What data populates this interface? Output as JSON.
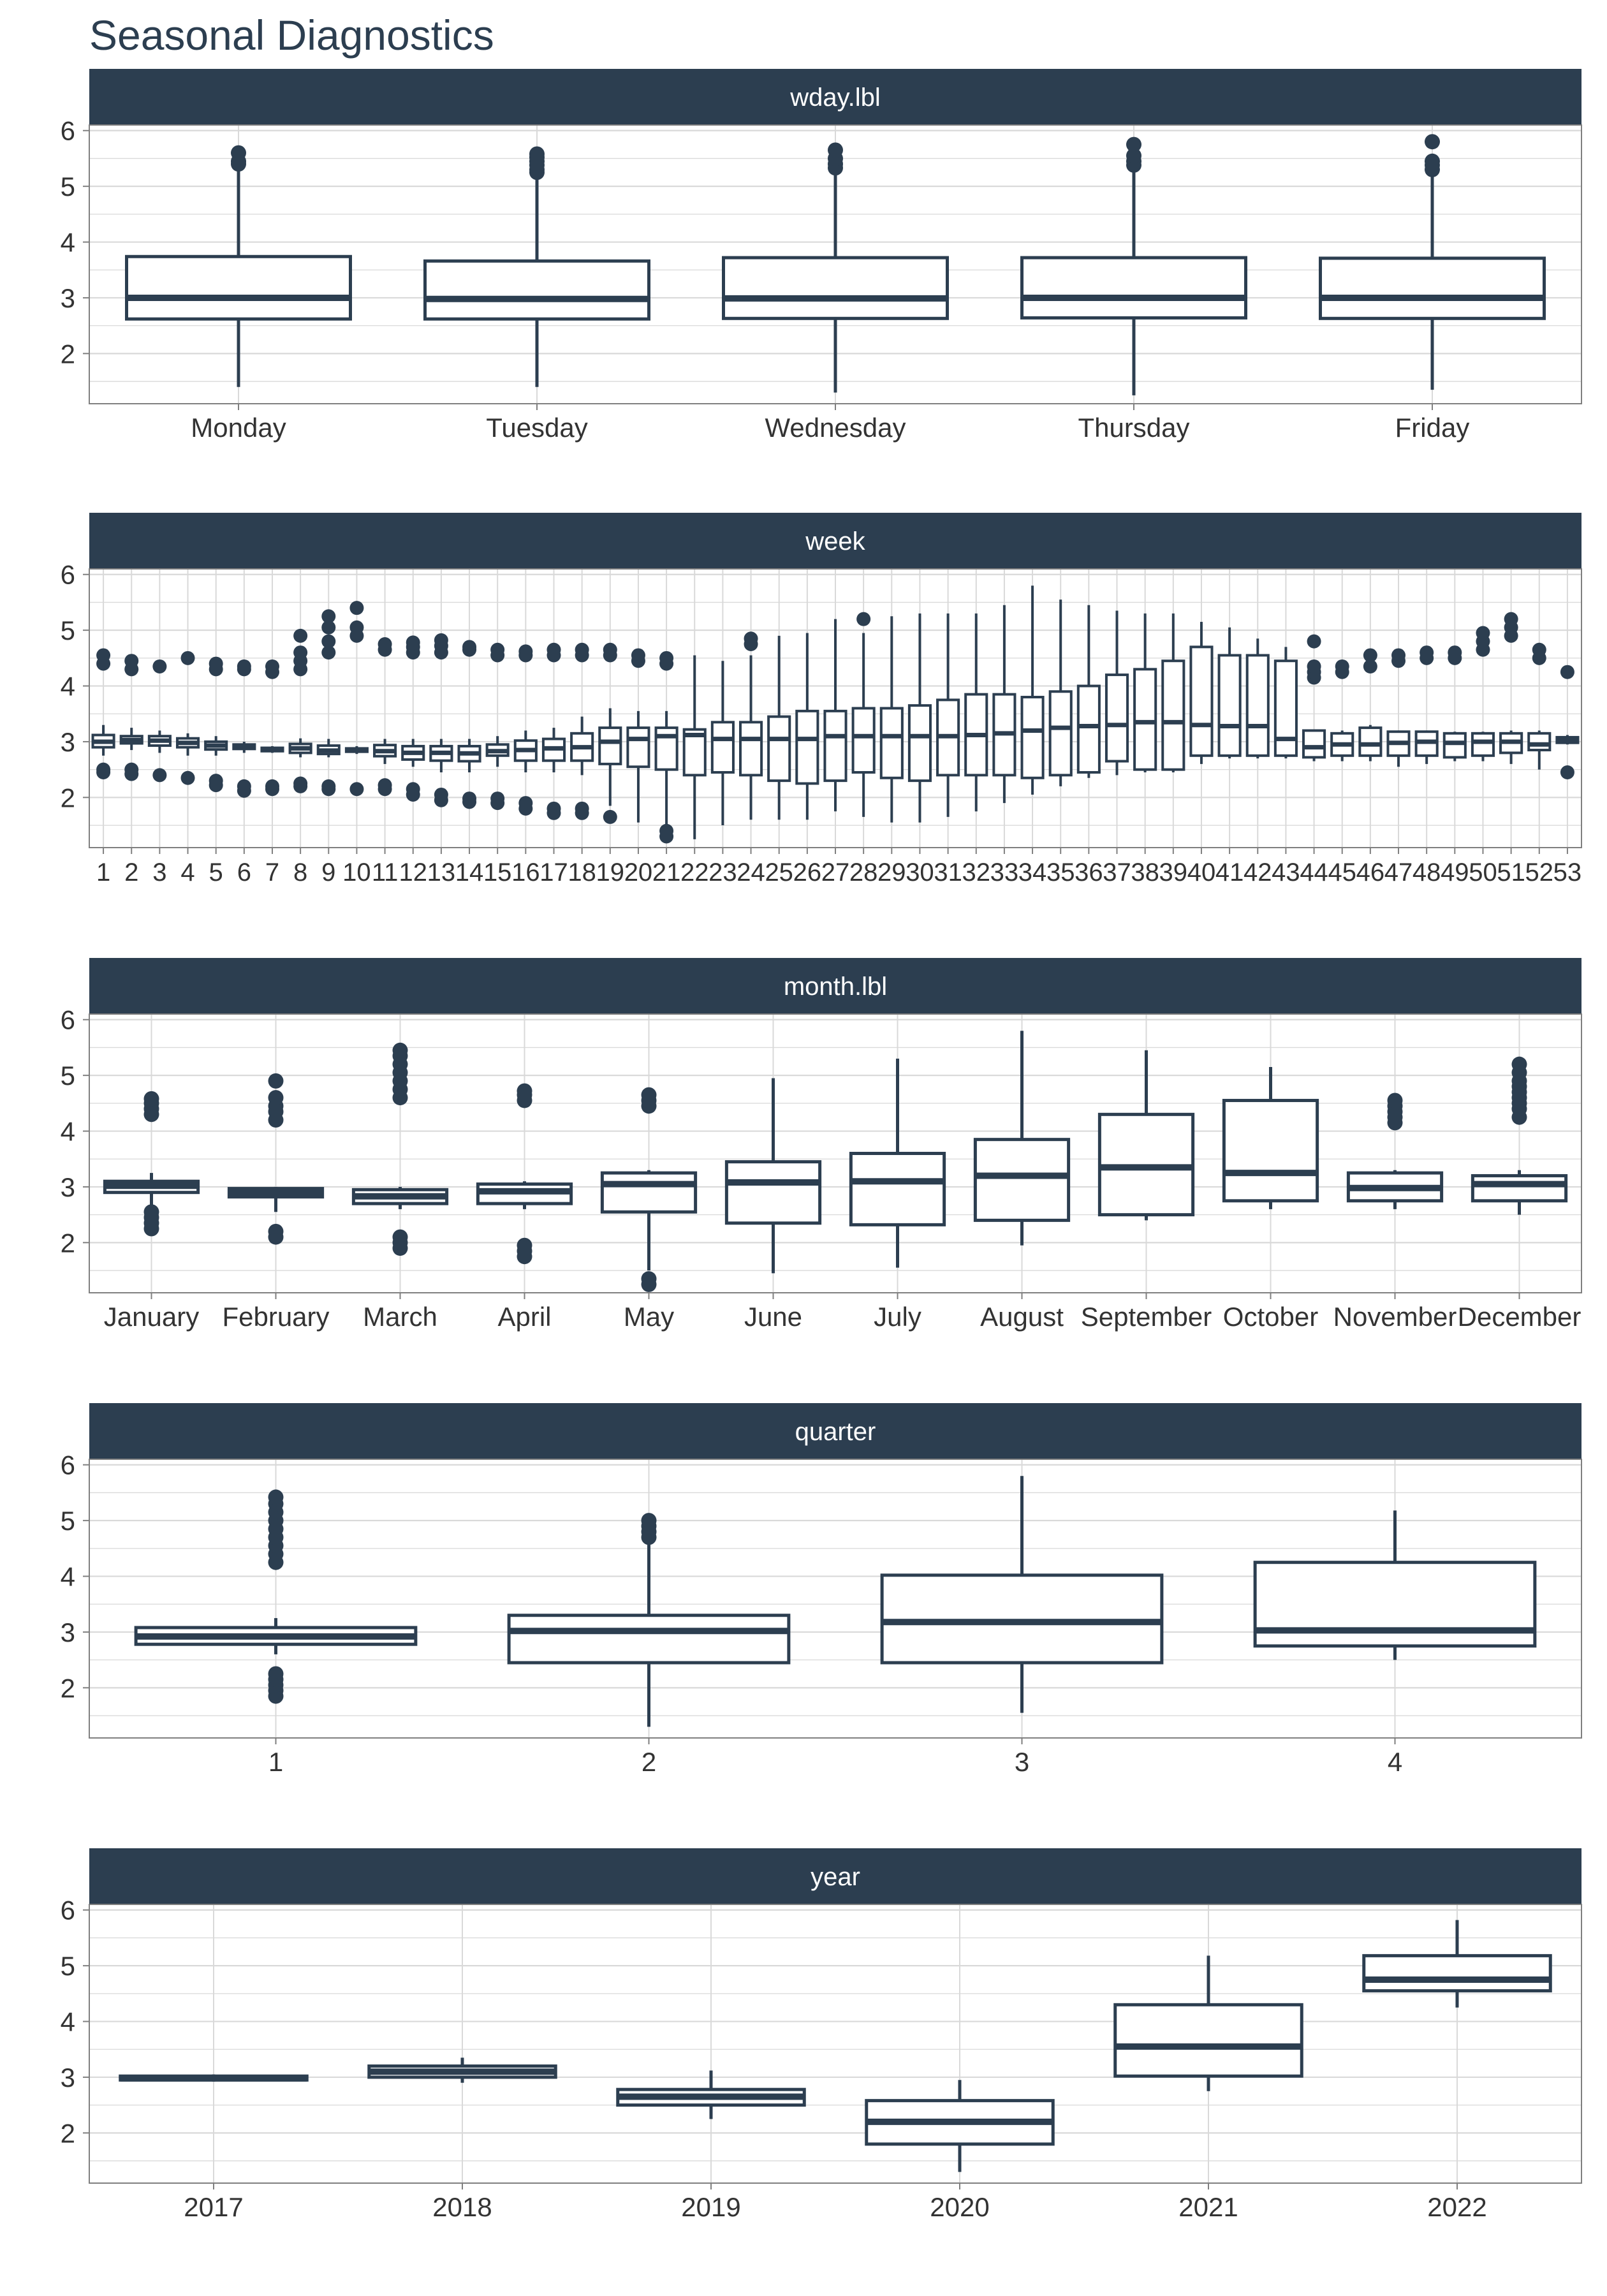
{
  "title": "Seasonal Diagnostics",
  "colors": {
    "box": "#2c3e50",
    "strip": "#2c3e50",
    "strip_text": "#ffffff",
    "grid": "#d9d9d9",
    "background": "#ffffff"
  },
  "chart_data": [
    {
      "type": "boxplot",
      "facet": "wday.lbl",
      "ylim": [
        1.1,
        6.1
      ],
      "yticks": [
        2,
        3,
        4,
        5,
        6
      ],
      "grid": true,
      "categories": [
        "Monday",
        "Tuesday",
        "Wednesday",
        "Thursday",
        "Friday"
      ],
      "boxes": [
        {
          "low": 1.4,
          "q1": 2.62,
          "median": 3.0,
          "q3": 3.74,
          "high": 5.3,
          "outliers": [
            5.4,
            5.45,
            5.6
          ]
        },
        {
          "low": 1.4,
          "q1": 2.62,
          "median": 2.98,
          "q3": 3.66,
          "high": 5.15,
          "outliers": [
            5.25,
            5.3,
            5.38,
            5.45,
            5.52,
            5.58
          ]
        },
        {
          "low": 1.3,
          "q1": 2.63,
          "median": 2.99,
          "q3": 3.72,
          "high": 5.25,
          "outliers": [
            5.33,
            5.4,
            5.5,
            5.65
          ]
        },
        {
          "low": 1.25,
          "q1": 2.64,
          "median": 3.0,
          "q3": 3.72,
          "high": 5.3,
          "outliers": [
            5.38,
            5.45,
            5.55,
            5.75
          ]
        },
        {
          "low": 1.35,
          "q1": 2.63,
          "median": 3.0,
          "q3": 3.71,
          "high": 5.2,
          "outliers": [
            5.3,
            5.38,
            5.45,
            5.8
          ]
        }
      ]
    },
    {
      "type": "boxplot",
      "facet": "week",
      "ylim": [
        1.1,
        6.1
      ],
      "yticks": [
        2,
        3,
        4,
        5,
        6
      ],
      "grid": true,
      "categories": [
        "1",
        "2",
        "3",
        "4",
        "5",
        "6",
        "7",
        "8",
        "9",
        "10",
        "11",
        "12",
        "13",
        "14",
        "15",
        "16",
        "17",
        "18",
        "19",
        "20",
        "21",
        "22",
        "23",
        "24",
        "25",
        "26",
        "27",
        "28",
        "29",
        "30",
        "31",
        "32",
        "33",
        "34",
        "35",
        "36",
        "37",
        "38",
        "39",
        "40",
        "41",
        "42",
        "43",
        "44",
        "45",
        "46",
        "47",
        "48",
        "49",
        "50",
        "51",
        "52",
        "53"
      ],
      "boxes": [
        {
          "low": 2.75,
          "q1": 2.9,
          "median": 3.0,
          "q3": 3.12,
          "high": 3.3,
          "outliers": [
            2.45,
            2.5,
            4.4,
            4.55
          ]
        },
        {
          "low": 2.85,
          "q1": 2.97,
          "median": 3.03,
          "q3": 3.1,
          "high": 3.25,
          "outliers": [
            2.42,
            2.5,
            4.3,
            4.45
          ]
        },
        {
          "low": 2.8,
          "q1": 2.93,
          "median": 3.02,
          "q3": 3.1,
          "high": 3.2,
          "outliers": [
            2.4,
            4.35
          ]
        },
        {
          "low": 2.75,
          "q1": 2.9,
          "median": 2.98,
          "q3": 3.06,
          "high": 3.15,
          "outliers": [
            2.35,
            4.5
          ]
        },
        {
          "low": 2.75,
          "q1": 2.86,
          "median": 2.93,
          "q3": 3.0,
          "high": 3.1,
          "outliers": [
            2.22,
            2.3,
            4.3,
            4.4
          ]
        },
        {
          "low": 2.8,
          "q1": 2.87,
          "median": 2.91,
          "q3": 2.95,
          "high": 3.0,
          "outliers": [
            2.12,
            2.2,
            4.3,
            4.35
          ]
        },
        {
          "low": 2.8,
          "q1": 2.83,
          "median": 2.86,
          "q3": 2.89,
          "high": 2.92,
          "outliers": [
            2.15,
            2.2,
            4.25,
            4.35
          ]
        },
        {
          "low": 2.72,
          "q1": 2.8,
          "median": 2.88,
          "q3": 2.96,
          "high": 3.06,
          "outliers": [
            2.2,
            2.25,
            4.3,
            4.45,
            4.6,
            4.9
          ]
        },
        {
          "low": 2.72,
          "q1": 2.78,
          "median": 2.84,
          "q3": 2.93,
          "high": 3.05,
          "outliers": [
            2.15,
            2.2,
            4.6,
            4.8,
            5.05,
            5.25
          ]
        },
        {
          "low": 2.78,
          "q1": 2.82,
          "median": 2.85,
          "q3": 2.88,
          "high": 2.92,
          "outliers": [
            2.15,
            4.9,
            5.05,
            5.4
          ]
        },
        {
          "low": 2.6,
          "q1": 2.74,
          "median": 2.83,
          "q3": 2.94,
          "high": 3.05,
          "outliers": [
            2.15,
            2.22,
            4.65,
            4.75
          ]
        },
        {
          "low": 2.55,
          "q1": 2.68,
          "median": 2.8,
          "q3": 2.92,
          "high": 3.05,
          "outliers": [
            2.05,
            2.15,
            4.6,
            4.7,
            4.78
          ]
        },
        {
          "low": 2.45,
          "q1": 2.66,
          "median": 2.8,
          "q3": 2.92,
          "high": 3.05,
          "outliers": [
            1.95,
            2.05,
            4.6,
            4.72,
            4.82
          ]
        },
        {
          "low": 2.45,
          "q1": 2.65,
          "median": 2.79,
          "q3": 2.92,
          "high": 3.05,
          "outliers": [
            1.92,
            1.98,
            4.65,
            4.7
          ]
        },
        {
          "low": 2.55,
          "q1": 2.75,
          "median": 2.83,
          "q3": 2.95,
          "high": 3.1,
          "outliers": [
            1.9,
            1.98,
            4.55,
            4.65
          ]
        },
        {
          "low": 2.45,
          "q1": 2.66,
          "median": 2.85,
          "q3": 3.02,
          "high": 3.2,
          "outliers": [
            1.8,
            1.9,
            4.55,
            4.62
          ]
        },
        {
          "low": 2.45,
          "q1": 2.66,
          "median": 2.88,
          "q3": 3.05,
          "high": 3.25,
          "outliers": [
            1.72,
            1.8,
            4.55,
            4.65
          ]
        },
        {
          "low": 2.4,
          "q1": 2.66,
          "median": 2.9,
          "q3": 3.15,
          "high": 3.45,
          "outliers": [
            1.72,
            1.8,
            4.55,
            4.65
          ]
        },
        {
          "low": 1.85,
          "q1": 2.6,
          "median": 3.0,
          "q3": 3.25,
          "high": 3.6,
          "outliers": [
            1.65,
            4.55,
            4.65
          ]
        },
        {
          "low": 1.55,
          "q1": 2.55,
          "median": 3.05,
          "q3": 3.25,
          "high": 3.55,
          "outliers": [
            4.45,
            4.55
          ]
        },
        {
          "low": 1.45,
          "q1": 2.5,
          "median": 3.1,
          "q3": 3.25,
          "high": 3.55,
          "outliers": [
            1.3,
            1.4,
            4.4,
            4.5
          ]
        },
        {
          "low": 1.25,
          "q1": 2.4,
          "median": 3.12,
          "q3": 3.22,
          "high": 4.55,
          "outliers": []
        },
        {
          "low": 1.5,
          "q1": 2.45,
          "median": 3.05,
          "q3": 3.35,
          "high": 4.45,
          "outliers": []
        },
        {
          "low": 1.6,
          "q1": 2.4,
          "median": 3.05,
          "q3": 3.35,
          "high": 4.55,
          "outliers": [
            4.75,
            4.85
          ]
        },
        {
          "low": 1.6,
          "q1": 2.3,
          "median": 3.05,
          "q3": 3.45,
          "high": 4.9,
          "outliers": []
        },
        {
          "low": 1.6,
          "q1": 2.25,
          "median": 3.05,
          "q3": 3.55,
          "high": 4.95,
          "outliers": []
        },
        {
          "low": 1.75,
          "q1": 2.3,
          "median": 3.1,
          "q3": 3.55,
          "high": 5.2,
          "outliers": []
        },
        {
          "low": 1.65,
          "q1": 2.45,
          "median": 3.1,
          "q3": 3.6,
          "high": 4.95,
          "outliers": [
            5.2
          ]
        },
        {
          "low": 1.55,
          "q1": 2.35,
          "median": 3.1,
          "q3": 3.6,
          "high": 5.25,
          "outliers": []
        },
        {
          "low": 1.55,
          "q1": 2.3,
          "median": 3.1,
          "q3": 3.65,
          "high": 5.3,
          "outliers": []
        },
        {
          "low": 1.65,
          "q1": 2.4,
          "median": 3.1,
          "q3": 3.75,
          "high": 5.3,
          "outliers": []
        },
        {
          "low": 1.75,
          "q1": 2.4,
          "median": 3.12,
          "q3": 3.85,
          "high": 5.3,
          "outliers": []
        },
        {
          "low": 1.9,
          "q1": 2.4,
          "median": 3.15,
          "q3": 3.85,
          "high": 5.45,
          "outliers": []
        },
        {
          "low": 2.05,
          "q1": 2.35,
          "median": 3.2,
          "q3": 3.8,
          "high": 5.8,
          "outliers": []
        },
        {
          "low": 2.2,
          "q1": 2.4,
          "median": 3.25,
          "q3": 3.9,
          "high": 5.55,
          "outliers": []
        },
        {
          "low": 2.35,
          "q1": 2.45,
          "median": 3.28,
          "q3": 4.0,
          "high": 5.45,
          "outliers": []
        },
        {
          "low": 2.4,
          "q1": 2.65,
          "median": 3.3,
          "q3": 4.2,
          "high": 5.35,
          "outliers": []
        },
        {
          "low": 2.45,
          "q1": 2.5,
          "median": 3.35,
          "q3": 4.3,
          "high": 5.3,
          "outliers": []
        },
        {
          "low": 2.45,
          "q1": 2.5,
          "median": 3.35,
          "q3": 4.45,
          "high": 5.3,
          "outliers": []
        },
        {
          "low": 2.6,
          "q1": 2.75,
          "median": 3.3,
          "q3": 4.7,
          "high": 5.15,
          "outliers": []
        },
        {
          "low": 2.7,
          "q1": 2.75,
          "median": 3.28,
          "q3": 4.55,
          "high": 5.05,
          "outliers": []
        },
        {
          "low": 2.7,
          "q1": 2.75,
          "median": 3.28,
          "q3": 4.55,
          "high": 4.85,
          "outliers": []
        },
        {
          "low": 2.7,
          "q1": 2.75,
          "median": 3.05,
          "q3": 4.45,
          "high": 4.7,
          "outliers": []
        },
        {
          "low": 2.65,
          "q1": 2.72,
          "median": 2.9,
          "q3": 3.2,
          "high": 3.2,
          "outliers": [
            4.15,
            4.25,
            4.35,
            4.8
          ]
        },
        {
          "low": 2.65,
          "q1": 2.75,
          "median": 2.95,
          "q3": 3.15,
          "high": 3.2,
          "outliers": [
            4.25,
            4.35
          ]
        },
        {
          "low": 2.65,
          "q1": 2.75,
          "median": 2.95,
          "q3": 3.25,
          "high": 3.3,
          "outliers": [
            4.35,
            4.55
          ]
        },
        {
          "low": 2.55,
          "q1": 2.75,
          "median": 2.98,
          "q3": 3.18,
          "high": 3.2,
          "outliers": [
            4.45,
            4.55
          ]
        },
        {
          "low": 2.6,
          "q1": 2.75,
          "median": 3.0,
          "q3": 3.18,
          "high": 3.2,
          "outliers": [
            4.5,
            4.6
          ]
        },
        {
          "low": 2.65,
          "q1": 2.72,
          "median": 2.98,
          "q3": 3.15,
          "high": 3.18,
          "outliers": [
            4.5,
            4.6
          ]
        },
        {
          "low": 2.65,
          "q1": 2.75,
          "median": 3.0,
          "q3": 3.15,
          "high": 3.18,
          "outliers": [
            4.65,
            4.8,
            4.95
          ]
        },
        {
          "low": 2.6,
          "q1": 2.8,
          "median": 3.0,
          "q3": 3.15,
          "high": 3.2,
          "outliers": [
            4.9,
            5.05,
            5.2
          ]
        },
        {
          "low": 2.5,
          "q1": 2.85,
          "median": 2.95,
          "q3": 3.15,
          "high": 3.2,
          "outliers": [
            4.5,
            4.65
          ]
        },
        {
          "low": 2.95,
          "q1": 2.98,
          "median": 3.03,
          "q3": 3.08,
          "high": 3.12,
          "outliers": [
            2.45,
            4.25
          ]
        }
      ]
    },
    {
      "type": "boxplot",
      "facet": "month.lbl",
      "ylim": [
        1.1,
        6.1
      ],
      "yticks": [
        2,
        3,
        4,
        5,
        6
      ],
      "grid": true,
      "categories": [
        "January",
        "February",
        "March",
        "April",
        "May",
        "June",
        "July",
        "August",
        "September",
        "October",
        "November",
        "December"
      ],
      "boxes": [
        {
          "low": 2.6,
          "q1": 2.9,
          "median": 3.02,
          "q3": 3.1,
          "high": 3.25,
          "outliers": [
            2.25,
            2.35,
            2.45,
            2.55,
            4.3,
            4.4,
            4.5,
            4.58
          ]
        },
        {
          "low": 2.55,
          "q1": 2.82,
          "median": 2.9,
          "q3": 2.97,
          "high": 3.0,
          "outliers": [
            2.1,
            2.2,
            4.2,
            4.35,
            4.45,
            4.6,
            4.9
          ]
        },
        {
          "low": 2.6,
          "q1": 2.7,
          "median": 2.83,
          "q3": 2.95,
          "high": 3.0,
          "outliers": [
            1.9,
            2.0,
            2.1,
            4.6,
            4.75,
            4.9,
            5.05,
            5.2,
            5.35,
            5.45
          ]
        },
        {
          "low": 2.6,
          "q1": 2.7,
          "median": 2.92,
          "q3": 3.05,
          "high": 3.1,
          "outliers": [
            1.75,
            1.85,
            1.95,
            4.55,
            4.65,
            4.72
          ]
        },
        {
          "low": 1.5,
          "q1": 2.55,
          "median": 3.05,
          "q3": 3.25,
          "high": 3.3,
          "outliers": [
            1.25,
            1.35,
            4.45,
            4.55,
            4.65
          ]
        },
        {
          "low": 1.45,
          "q1": 2.35,
          "median": 3.08,
          "q3": 3.45,
          "high": 4.95,
          "outliers": []
        },
        {
          "low": 1.55,
          "q1": 2.32,
          "median": 3.1,
          "q3": 3.6,
          "high": 5.3,
          "outliers": []
        },
        {
          "low": 1.95,
          "q1": 2.4,
          "median": 3.2,
          "q3": 3.85,
          "high": 5.8,
          "outliers": []
        },
        {
          "low": 2.4,
          "q1": 2.5,
          "median": 3.35,
          "q3": 4.3,
          "high": 5.45,
          "outliers": []
        },
        {
          "low": 2.6,
          "q1": 2.75,
          "median": 3.25,
          "q3": 4.55,
          "high": 5.15,
          "outliers": []
        },
        {
          "low": 2.6,
          "q1": 2.75,
          "median": 2.98,
          "q3": 3.25,
          "high": 3.3,
          "outliers": [
            4.15,
            4.25,
            4.35,
            4.45,
            4.55
          ]
        },
        {
          "low": 2.5,
          "q1": 2.75,
          "median": 3.05,
          "q3": 3.2,
          "high": 3.3,
          "outliers": [
            4.25,
            4.4,
            4.5,
            4.6,
            4.7,
            4.8,
            4.9,
            5.05,
            5.2
          ]
        }
      ]
    },
    {
      "type": "boxplot",
      "facet": "quarter",
      "ylim": [
        1.1,
        6.1
      ],
      "yticks": [
        2,
        3,
        4,
        5,
        6
      ],
      "grid": true,
      "categories": [
        "1",
        "2",
        "3",
        "4"
      ],
      "boxes": [
        {
          "low": 2.6,
          "q1": 2.78,
          "median": 2.92,
          "q3": 3.08,
          "high": 3.25,
          "outliers": [
            1.85,
            1.95,
            2.05,
            2.15,
            2.25,
            4.25,
            4.4,
            4.55,
            4.7,
            4.85,
            5.0,
            5.15,
            5.3,
            5.42
          ]
        },
        {
          "low": 1.3,
          "q1": 2.45,
          "median": 3.02,
          "q3": 3.3,
          "high": 4.6,
          "outliers": [
            4.7,
            4.8,
            4.9,
            5.0
          ]
        },
        {
          "low": 1.55,
          "q1": 2.45,
          "median": 3.18,
          "q3": 4.02,
          "high": 5.8,
          "outliers": []
        },
        {
          "low": 2.5,
          "q1": 2.75,
          "median": 3.03,
          "q3": 4.25,
          "high": 5.18,
          "outliers": []
        }
      ]
    },
    {
      "type": "boxplot",
      "facet": "year",
      "ylim": [
        1.1,
        6.1
      ],
      "yticks": [
        2,
        3,
        4,
        5,
        6
      ],
      "grid": true,
      "categories": [
        "2017",
        "2018",
        "2019",
        "2020",
        "2021",
        "2022"
      ],
      "boxes": [
        {
          "low": 2.92,
          "q1": 2.95,
          "median": 2.98,
          "q3": 3.02,
          "high": 3.05,
          "outliers": []
        },
        {
          "low": 2.9,
          "q1": 3.0,
          "median": 3.1,
          "q3": 3.2,
          "high": 3.35,
          "outliers": []
        },
        {
          "low": 2.25,
          "q1": 2.5,
          "median": 2.65,
          "q3": 2.78,
          "high": 3.12,
          "outliers": []
        },
        {
          "low": 1.3,
          "q1": 1.8,
          "median": 2.2,
          "q3": 2.58,
          "high": 2.95,
          "outliers": []
        },
        {
          "low": 2.75,
          "q1": 3.02,
          "median": 3.55,
          "q3": 4.3,
          "high": 5.18,
          "outliers": []
        },
        {
          "low": 4.25,
          "q1": 4.55,
          "median": 4.75,
          "q3": 5.18,
          "high": 5.82,
          "outliers": []
        }
      ]
    }
  ]
}
